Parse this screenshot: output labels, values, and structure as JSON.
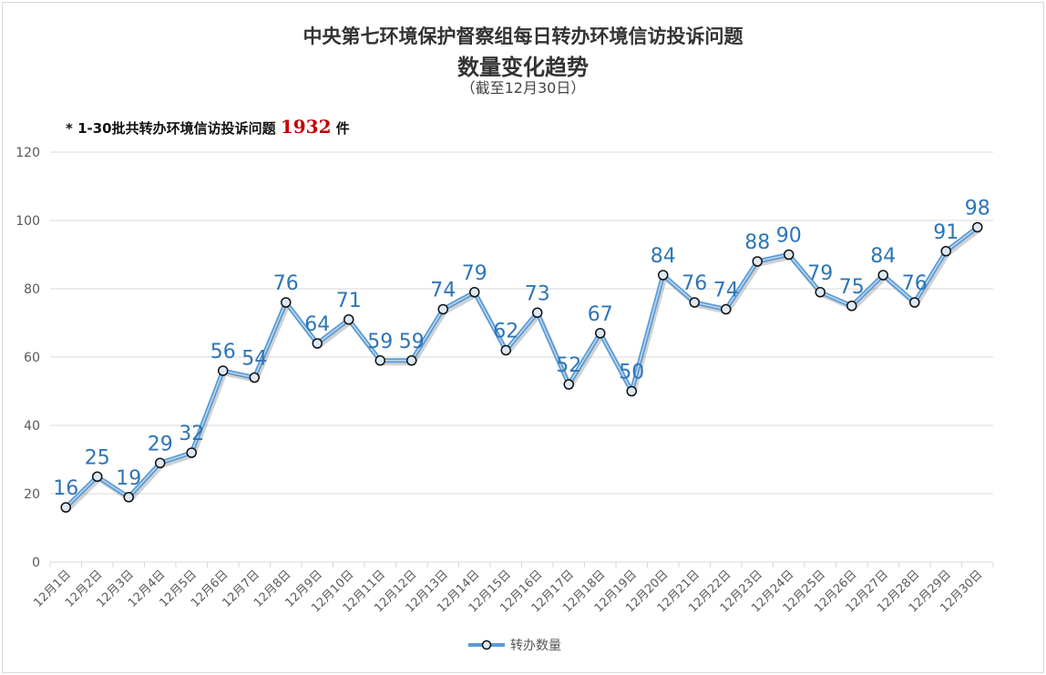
{
  "chart_data": {
    "type": "line",
    "title": "中央第七环境保护督察组每日转办环境信访投诉问题",
    "subtitle": "数量变化趋势",
    "subtitle2": "（截至12月30日）",
    "annotation": {
      "prefix": "* 1-30批共转办环境信访投诉问题",
      "value": "1932",
      "suffix": "件"
    },
    "categories": [
      "12月1日",
      "12月2日",
      "12月3日",
      "12月4日",
      "12月5日",
      "12月6日",
      "12月7日",
      "12月8日",
      "12月9日",
      "12月10日",
      "12月11日",
      "12月12日",
      "12月13日",
      "12月14日",
      "12月15日",
      "12月16日",
      "12月17日",
      "12月18日",
      "12月19日",
      "12月20日",
      "12月21日",
      "12月22日",
      "12月23日",
      "12月24日",
      "12月25日",
      "12月26日",
      "12月27日",
      "12月28日",
      "12月29日",
      "12月30日"
    ],
    "series": [
      {
        "name": "转办数量",
        "values": [
          16,
          25,
          19,
          29,
          32,
          56,
          54,
          76,
          64,
          71,
          59,
          59,
          74,
          79,
          62,
          73,
          52,
          67,
          50,
          84,
          76,
          74,
          88,
          90,
          79,
          75,
          84,
          76,
          91,
          98
        ]
      }
    ],
    "ylim": [
      0,
      120
    ],
    "yticks": [
      0,
      20,
      40,
      60,
      80,
      100,
      120
    ],
    "grid": true,
    "legend": "bottom",
    "colors": {
      "line": "#5b9bd5",
      "label": "#2e75b6",
      "note_value": "#c00000"
    }
  }
}
